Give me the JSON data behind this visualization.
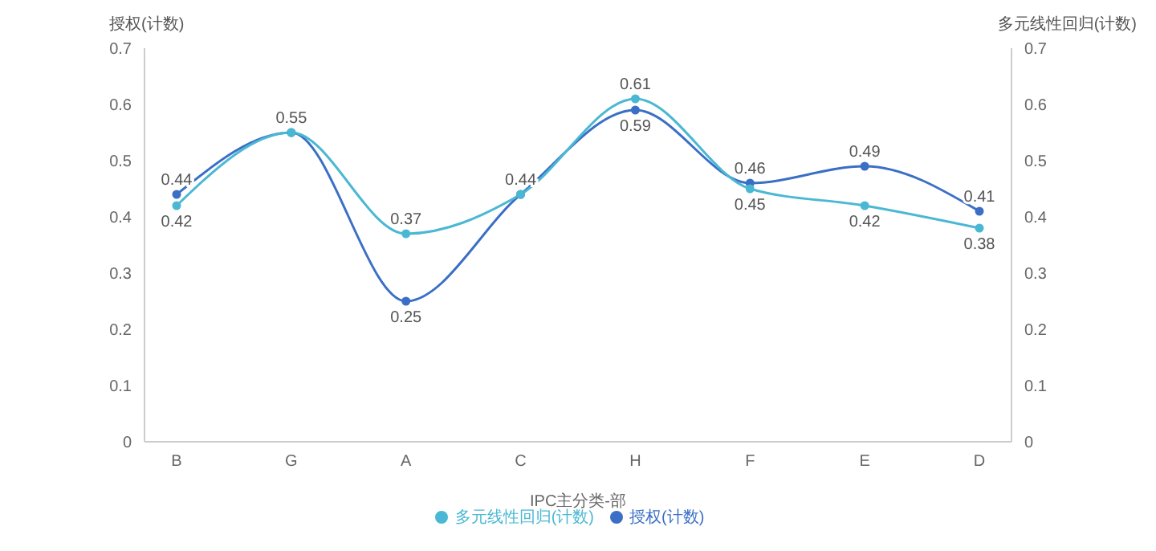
{
  "chart_data": {
    "type": "line",
    "xlabel": "IPC主分类-部",
    "ylabel": "授权(计数)",
    "y2label": "多元线性回归(计数)",
    "categories": [
      "B",
      "G",
      "A",
      "C",
      "H",
      "F",
      "E",
      "D"
    ],
    "series": [
      {
        "name": "授权(计数)",
        "color": "#3b6fc6",
        "values": [
          0.44,
          0.55,
          0.25,
          0.44,
          0.59,
          0.46,
          0.49,
          0.41
        ],
        "value_labels": [
          "0.44",
          "0.55",
          "0.25",
          "0.44",
          "0.59",
          "0.46",
          "0.49",
          "0.41"
        ]
      },
      {
        "name": "多元线性回归(计数)",
        "color": "#4bb8d3",
        "axis": "y2",
        "values": [
          0.42,
          0.55,
          0.37,
          0.44,
          0.61,
          0.45,
          0.42,
          0.38
        ],
        "value_labels": [
          "0.42",
          null,
          "0.37",
          null,
          "0.61",
          "0.45",
          "0.42",
          "0.38"
        ]
      }
    ],
    "ylim": [
      0,
      0.7
    ],
    "yticks": [
      0,
      0.1,
      0.2,
      0.3,
      0.4,
      0.5,
      0.6,
      0.7
    ],
    "y2lim": [
      0,
      0.7
    ],
    "y2ticks": [
      0,
      0.1,
      0.2,
      0.3,
      0.4,
      0.5,
      0.6,
      0.7
    ],
    "grid": false,
    "legend": "bottom",
    "marker": "circle",
    "line_style": "solid"
  }
}
